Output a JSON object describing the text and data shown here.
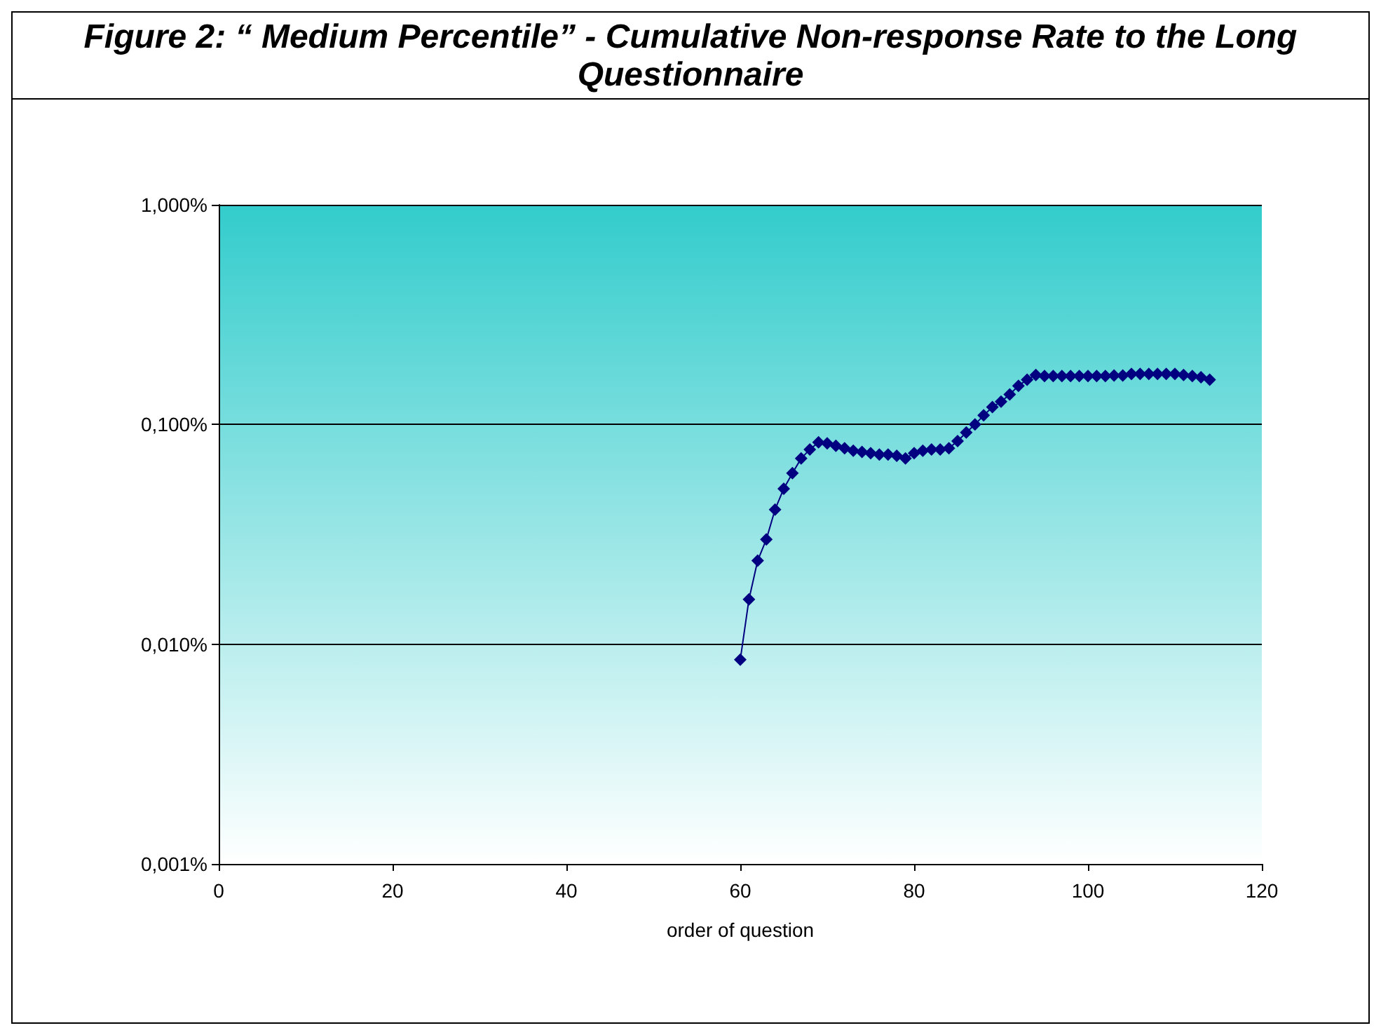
{
  "chart_data": {
    "type": "line",
    "title": "Figure 2: “ Medium  Percentile” - Cumulative Non-response Rate to the Long Questionnaire",
    "xlabel": "order of question",
    "x": [
      60,
      61,
      62,
      63,
      64,
      65,
      66,
      67,
      68,
      69,
      70,
      71,
      72,
      73,
      74,
      75,
      76,
      77,
      78,
      79,
      80,
      81,
      82,
      83,
      84,
      85,
      86,
      87,
      88,
      89,
      90,
      91,
      92,
      93,
      94,
      95,
      96,
      97,
      98,
      99,
      100,
      101,
      102,
      103,
      104,
      105,
      106,
      107,
      108,
      109,
      110,
      111,
      112,
      113,
      114
    ],
    "series": [
      {
        "color": "#000080",
        "values": [
          0.0085,
          0.016,
          0.024,
          0.03,
          0.041,
          0.051,
          0.06,
          0.07,
          0.077,
          0.083,
          0.082,
          0.08,
          0.078,
          0.076,
          0.075,
          0.074,
          0.073,
          0.073,
          0.072,
          0.07,
          0.074,
          0.076,
          0.077,
          0.077,
          0.078,
          0.084,
          0.092,
          0.1,
          0.11,
          0.12,
          0.127,
          0.137,
          0.15,
          0.16,
          0.168,
          0.166,
          0.166,
          0.166,
          0.166,
          0.166,
          0.166,
          0.166,
          0.166,
          0.167,
          0.167,
          0.17,
          0.17,
          0.17,
          0.17,
          0.17,
          0.17,
          0.168,
          0.166,
          0.164,
          0.16
        ]
      }
    ],
    "xlim": [
      0,
      120
    ],
    "xticks": [
      0,
      20,
      40,
      60,
      80,
      100,
      120
    ],
    "log": "y",
    "ylim": [
      0.001,
      1
    ],
    "yticks": [
      {
        "value": 0.001,
        "label": "0,001%"
      },
      {
        "value": 0.01,
        "label": "0,010%"
      },
      {
        "value": 0.1,
        "label": "0,100%"
      },
      {
        "value": 1,
        "label": "1,000%"
      }
    ],
    "grid": "y",
    "marker": "diamond",
    "line_style": "solid"
  }
}
